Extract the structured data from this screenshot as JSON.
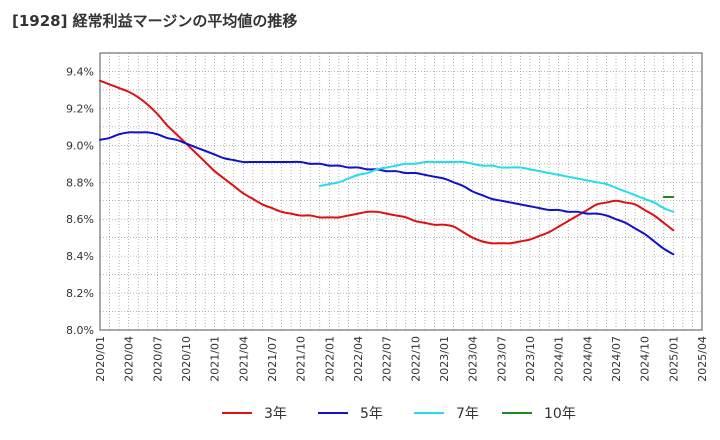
{
  "chart_data": {
    "type": "line",
    "title": "[1928]  経常利益マージンの平均値の推移",
    "xlabel": "",
    "ylabel": "",
    "ylim": [
      8.0,
      9.5
    ],
    "y_ticks": [
      8.0,
      8.2,
      8.4,
      8.6,
      8.8,
      9.0,
      9.2,
      9.4
    ],
    "y_tick_labels": [
      "8.0%",
      "8.2%",
      "8.4%",
      "8.6%",
      "8.8%",
      "9.0%",
      "9.2%",
      "9.4%"
    ],
    "x_tick_labels": [
      "2020/01",
      "2020/04",
      "2020/07",
      "2020/10",
      "2021/01",
      "2021/04",
      "2021/07",
      "2021/10",
      "2022/01",
      "2022/04",
      "2022/07",
      "2022/10",
      "2023/01",
      "2023/04",
      "2023/07",
      "2023/10",
      "2024/01",
      "2024/04",
      "2024/07",
      "2024/10",
      "2025/01",
      "2025/04"
    ],
    "grid": true,
    "legend_position": "bottom",
    "series": [
      {
        "name": "3年",
        "color": "#dd1111",
        "points": [
          [
            "2020/01",
            9.35
          ],
          [
            "2020/02",
            9.33
          ],
          [
            "2020/03",
            9.31
          ],
          [
            "2020/04",
            9.29
          ],
          [
            "2020/05",
            9.26
          ],
          [
            "2020/06",
            9.22
          ],
          [
            "2020/07",
            9.17
          ],
          [
            "2020/08",
            9.11
          ],
          [
            "2020/09",
            9.06
          ],
          [
            "2020/10",
            9.01
          ],
          [
            "2020/11",
            8.96
          ],
          [
            "2020/12",
            8.91
          ],
          [
            "2021/01",
            8.86
          ],
          [
            "2021/02",
            8.82
          ],
          [
            "2021/03",
            8.78
          ],
          [
            "2021/04",
            8.74
          ],
          [
            "2021/05",
            8.71
          ],
          [
            "2021/06",
            8.68
          ],
          [
            "2021/07",
            8.66
          ],
          [
            "2021/08",
            8.64
          ],
          [
            "2021/09",
            8.63
          ],
          [
            "2021/10",
            8.62
          ],
          [
            "2021/11",
            8.62
          ],
          [
            "2021/12",
            8.61
          ],
          [
            "2022/01",
            8.61
          ],
          [
            "2022/02",
            8.61
          ],
          [
            "2022/03",
            8.62
          ],
          [
            "2022/04",
            8.63
          ],
          [
            "2022/05",
            8.64
          ],
          [
            "2022/06",
            8.64
          ],
          [
            "2022/07",
            8.63
          ],
          [
            "2022/08",
            8.62
          ],
          [
            "2022/09",
            8.61
          ],
          [
            "2022/10",
            8.59
          ],
          [
            "2022/11",
            8.58
          ],
          [
            "2022/12",
            8.57
          ],
          [
            "2023/01",
            8.57
          ],
          [
            "2023/02",
            8.56
          ],
          [
            "2023/03",
            8.53
          ],
          [
            "2023/04",
            8.5
          ],
          [
            "2023/05",
            8.48
          ],
          [
            "2023/06",
            8.47
          ],
          [
            "2023/07",
            8.47
          ],
          [
            "2023/08",
            8.47
          ],
          [
            "2023/09",
            8.48
          ],
          [
            "2023/10",
            8.49
          ],
          [
            "2023/11",
            8.51
          ],
          [
            "2023/12",
            8.53
          ],
          [
            "2024/01",
            8.56
          ],
          [
            "2024/02",
            8.59
          ],
          [
            "2024/03",
            8.62
          ],
          [
            "2024/04",
            8.65
          ],
          [
            "2024/05",
            8.68
          ],
          [
            "2024/06",
            8.69
          ],
          [
            "2024/07",
            8.7
          ],
          [
            "2024/08",
            8.69
          ],
          [
            "2024/09",
            8.68
          ],
          [
            "2024/10",
            8.65
          ],
          [
            "2024/11",
            8.62
          ],
          [
            "2024/12",
            8.58
          ],
          [
            "2025/01",
            8.54
          ]
        ]
      },
      {
        "name": "5年",
        "color": "#1111cc",
        "points": [
          [
            "2020/01",
            9.03
          ],
          [
            "2020/02",
            9.04
          ],
          [
            "2020/03",
            9.06
          ],
          [
            "2020/04",
            9.07
          ],
          [
            "2020/05",
            9.07
          ],
          [
            "2020/06",
            9.07
          ],
          [
            "2020/07",
            9.06
          ],
          [
            "2020/08",
            9.04
          ],
          [
            "2020/09",
            9.03
          ],
          [
            "2020/10",
            9.01
          ],
          [
            "2020/11",
            8.99
          ],
          [
            "2020/12",
            8.97
          ],
          [
            "2021/01",
            8.95
          ],
          [
            "2021/02",
            8.93
          ],
          [
            "2021/03",
            8.92
          ],
          [
            "2021/04",
            8.91
          ],
          [
            "2021/05",
            8.91
          ],
          [
            "2021/06",
            8.91
          ],
          [
            "2021/07",
            8.91
          ],
          [
            "2021/08",
            8.91
          ],
          [
            "2021/09",
            8.91
          ],
          [
            "2021/10",
            8.91
          ],
          [
            "2021/11",
            8.9
          ],
          [
            "2021/12",
            8.9
          ],
          [
            "2022/01",
            8.89
          ],
          [
            "2022/02",
            8.89
          ],
          [
            "2022/03",
            8.88
          ],
          [
            "2022/04",
            8.88
          ],
          [
            "2022/05",
            8.87
          ],
          [
            "2022/06",
            8.87
          ],
          [
            "2022/07",
            8.86
          ],
          [
            "2022/08",
            8.86
          ],
          [
            "2022/09",
            8.85
          ],
          [
            "2022/10",
            8.85
          ],
          [
            "2022/11",
            8.84
          ],
          [
            "2022/12",
            8.83
          ],
          [
            "2023/01",
            8.82
          ],
          [
            "2023/02",
            8.8
          ],
          [
            "2023/03",
            8.78
          ],
          [
            "2023/04",
            8.75
          ],
          [
            "2023/05",
            8.73
          ],
          [
            "2023/06",
            8.71
          ],
          [
            "2023/07",
            8.7
          ],
          [
            "2023/08",
            8.69
          ],
          [
            "2023/09",
            8.68
          ],
          [
            "2023/10",
            8.67
          ],
          [
            "2023/11",
            8.66
          ],
          [
            "2023/12",
            8.65
          ],
          [
            "2024/01",
            8.65
          ],
          [
            "2024/02",
            8.64
          ],
          [
            "2024/03",
            8.64
          ],
          [
            "2024/04",
            8.63
          ],
          [
            "2024/05",
            8.63
          ],
          [
            "2024/06",
            8.62
          ],
          [
            "2024/07",
            8.6
          ],
          [
            "2024/08",
            8.58
          ],
          [
            "2024/09",
            8.55
          ],
          [
            "2024/10",
            8.52
          ],
          [
            "2024/11",
            8.48
          ],
          [
            "2024/12",
            8.44
          ],
          [
            "2025/01",
            8.41
          ]
        ]
      },
      {
        "name": "7年",
        "color": "#22ddee",
        "points": [
          [
            "2021/12",
            8.78
          ],
          [
            "2022/01",
            8.79
          ],
          [
            "2022/02",
            8.8
          ],
          [
            "2022/03",
            8.82
          ],
          [
            "2022/04",
            8.84
          ],
          [
            "2022/05",
            8.85
          ],
          [
            "2022/06",
            8.87
          ],
          [
            "2022/07",
            8.88
          ],
          [
            "2022/08",
            8.89
          ],
          [
            "2022/09",
            8.9
          ],
          [
            "2022/10",
            8.9
          ],
          [
            "2022/11",
            8.91
          ],
          [
            "2022/12",
            8.91
          ],
          [
            "2023/01",
            8.91
          ],
          [
            "2023/02",
            8.91
          ],
          [
            "2023/03",
            8.91
          ],
          [
            "2023/04",
            8.9
          ],
          [
            "2023/05",
            8.89
          ],
          [
            "2023/06",
            8.89
          ],
          [
            "2023/07",
            8.88
          ],
          [
            "2023/08",
            8.88
          ],
          [
            "2023/09",
            8.88
          ],
          [
            "2023/10",
            8.87
          ],
          [
            "2023/11",
            8.86
          ],
          [
            "2023/12",
            8.85
          ],
          [
            "2024/01",
            8.84
          ],
          [
            "2024/02",
            8.83
          ],
          [
            "2024/03",
            8.82
          ],
          [
            "2024/04",
            8.81
          ],
          [
            "2024/05",
            8.8
          ],
          [
            "2024/06",
            8.79
          ],
          [
            "2024/07",
            8.77
          ],
          [
            "2024/08",
            8.75
          ],
          [
            "2024/09",
            8.73
          ],
          [
            "2024/10",
            8.71
          ],
          [
            "2024/11",
            8.69
          ],
          [
            "2024/12",
            8.66
          ],
          [
            "2025/01",
            8.64
          ]
        ]
      },
      {
        "name": "10年",
        "color": "#228822",
        "points": [
          [
            "2024/12",
            8.72
          ],
          [
            "2025/01",
            8.72
          ]
        ]
      }
    ]
  }
}
